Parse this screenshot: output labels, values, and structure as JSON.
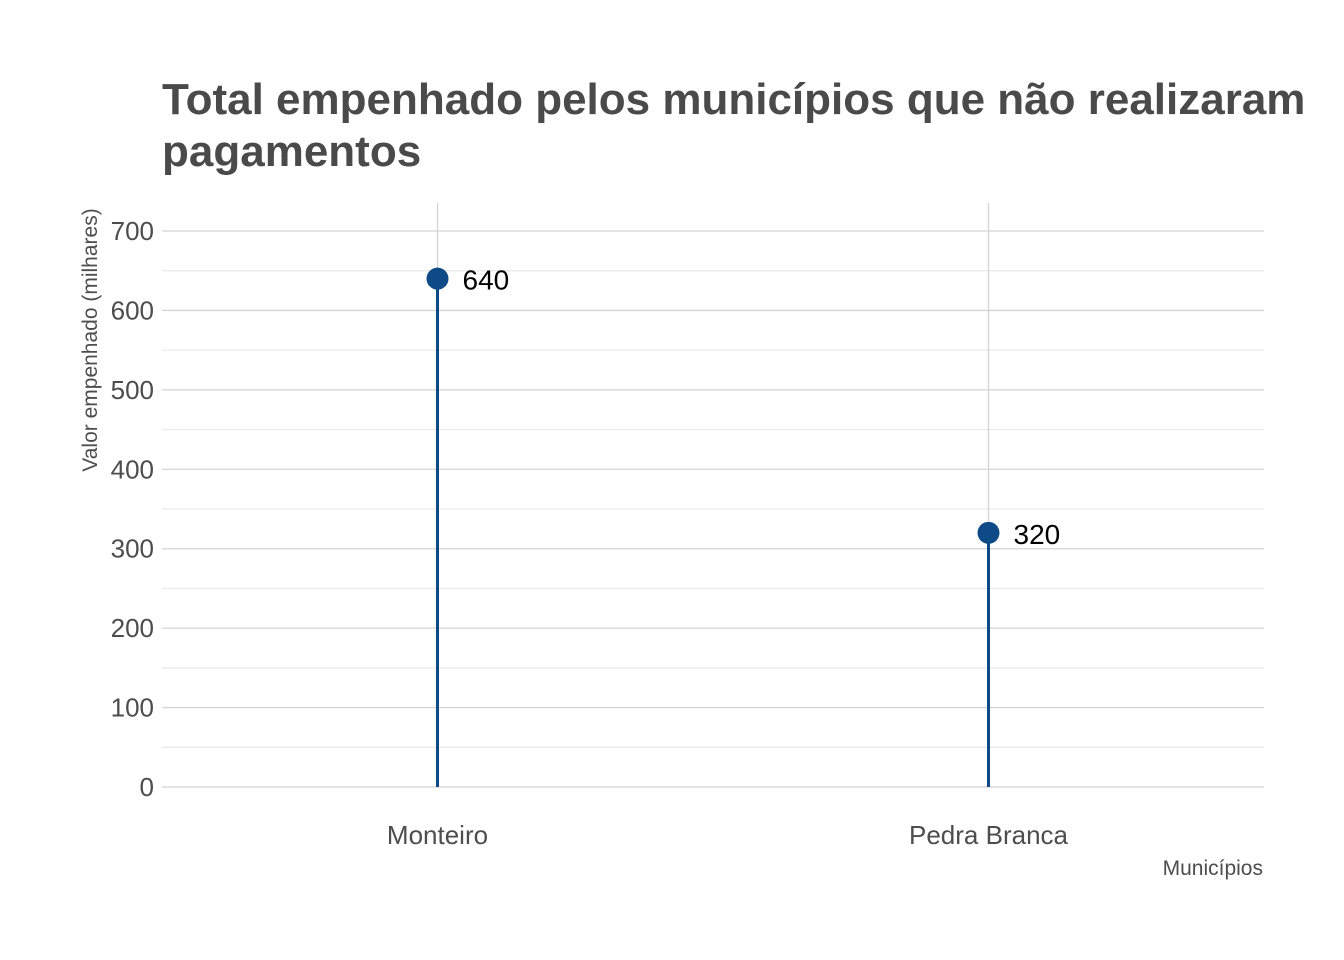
{
  "chart_data": {
    "type": "lollipop",
    "title_lines": [
      "Total empenhado pelos municípios que não realizaram",
      "pagamentos"
    ],
    "xlabel": "Municípios",
    "ylabel": "Valor empenhado (milhares)",
    "categories": [
      "Monteiro",
      "Pedra Branca"
    ],
    "values": [
      640,
      320
    ],
    "data_labels": [
      "640",
      "320"
    ],
    "ylim": [
      0,
      735
    ],
    "yticks": [
      0,
      100,
      200,
      300,
      400,
      500,
      600,
      700
    ],
    "grid": true,
    "color": "#0d4a86"
  }
}
